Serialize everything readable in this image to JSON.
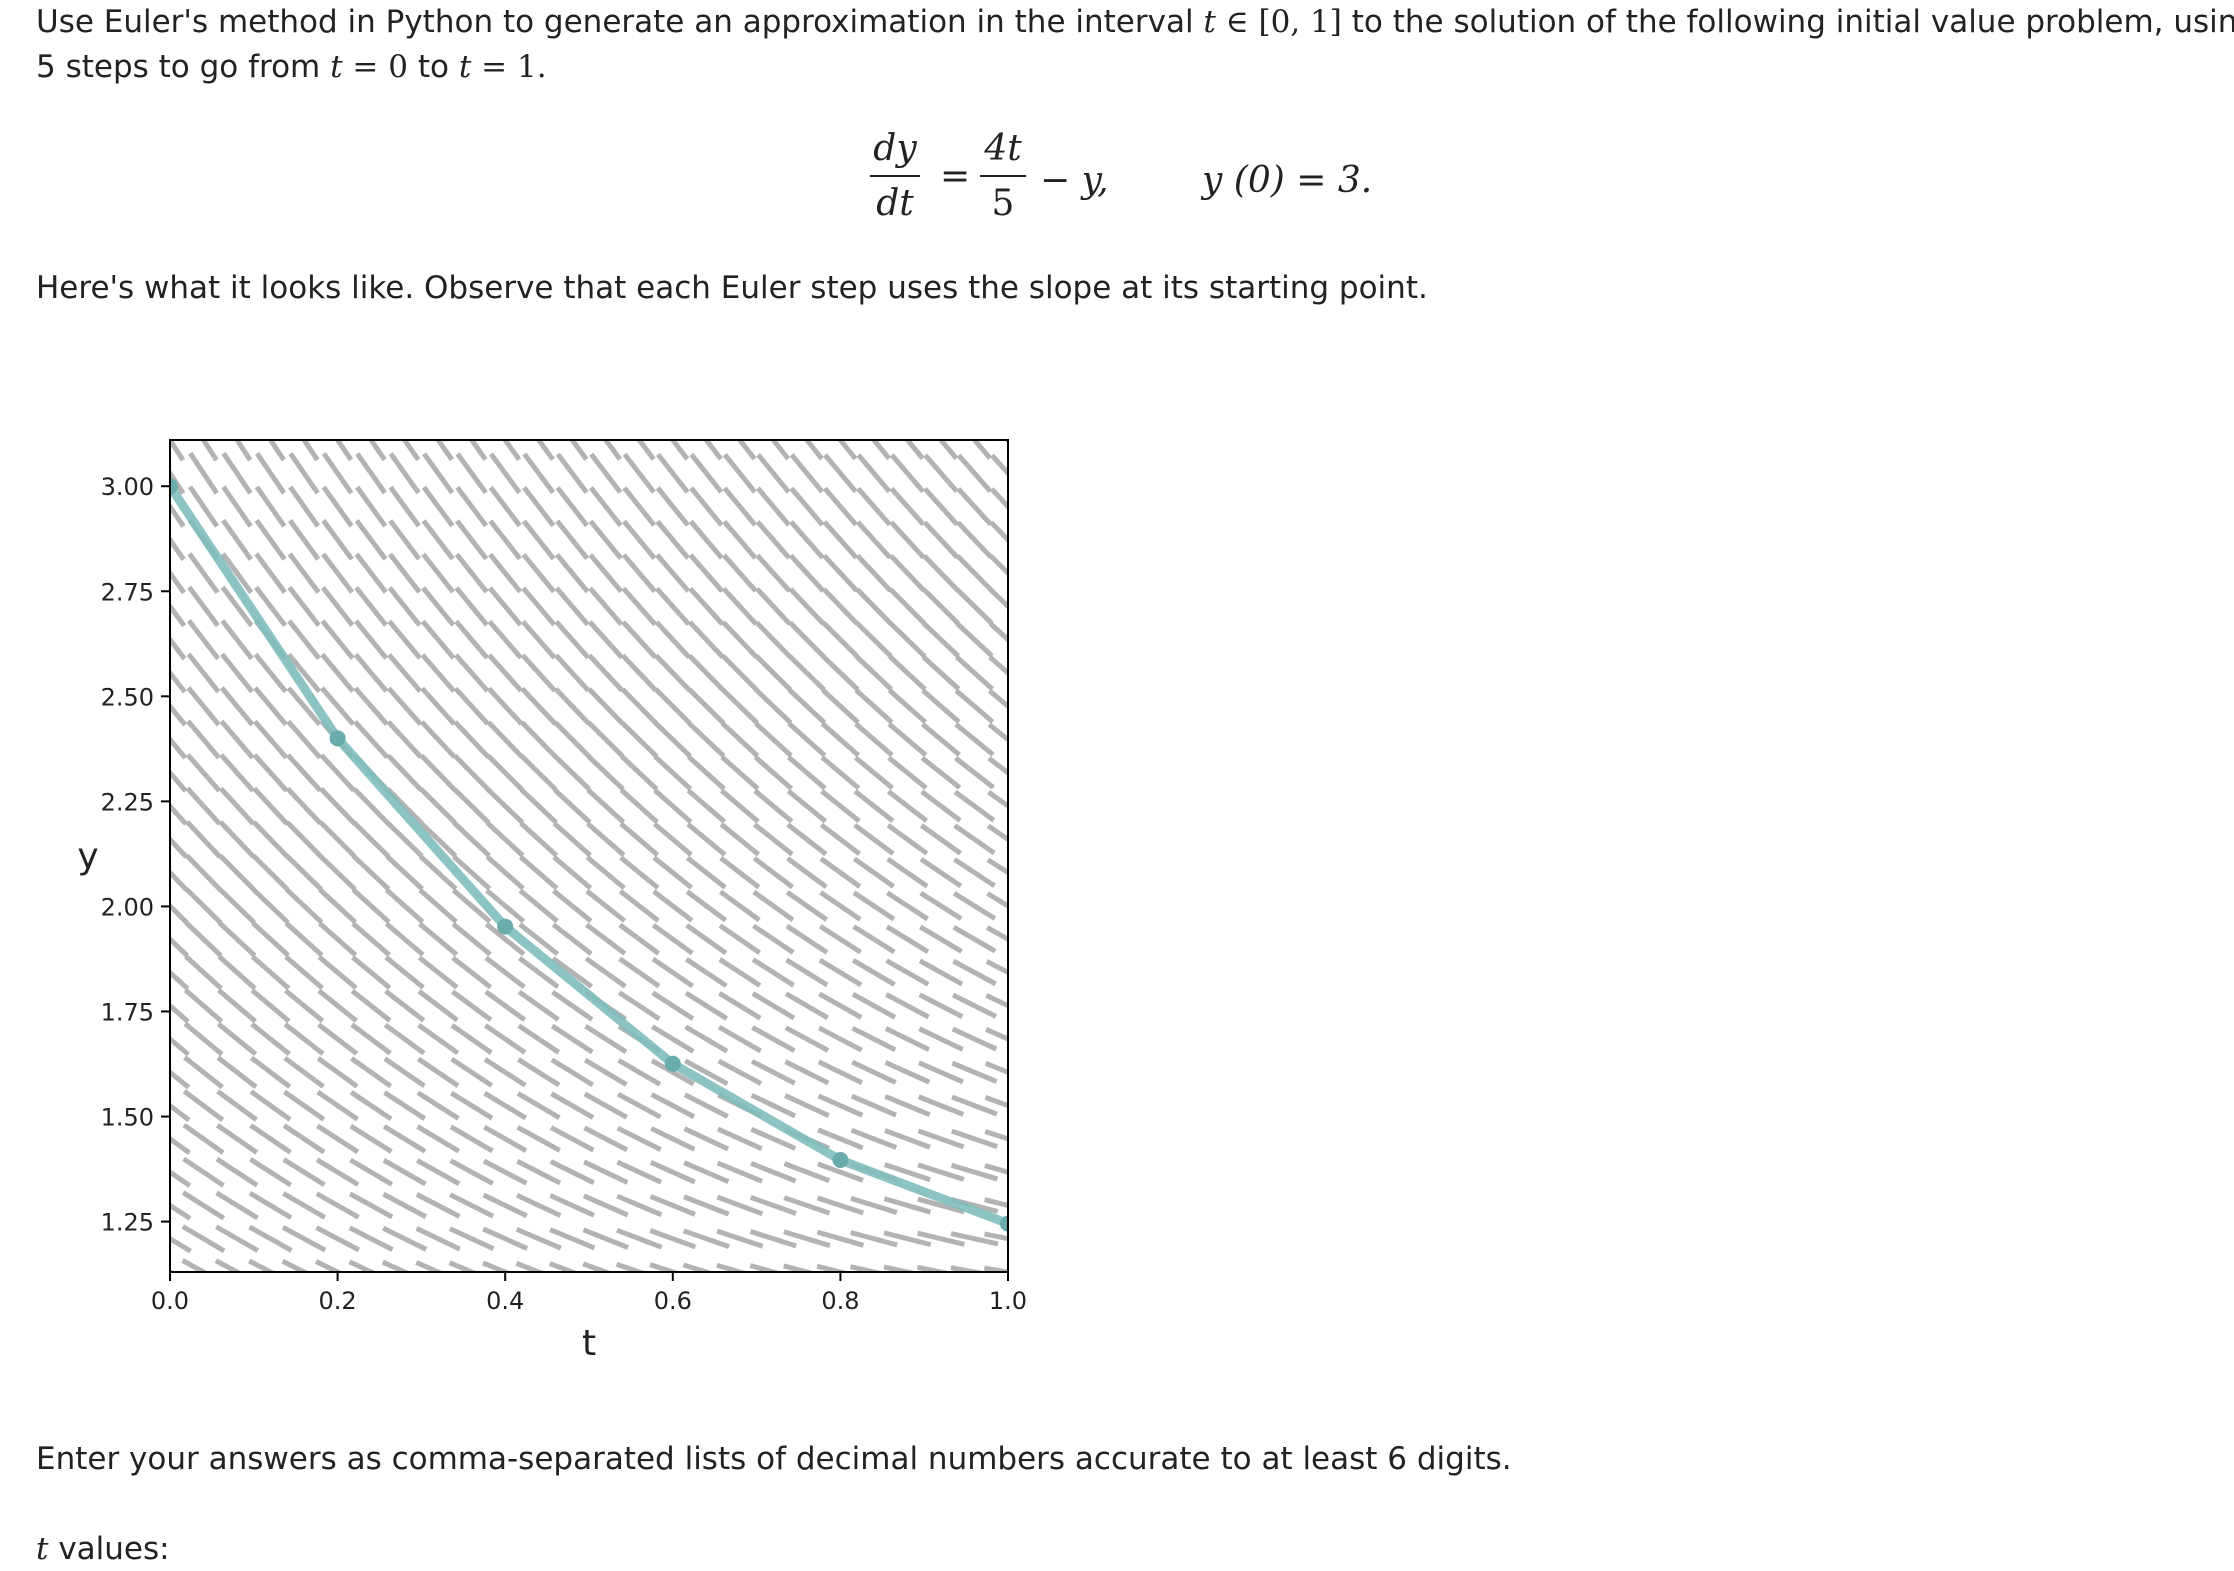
{
  "question": {
    "line1_a": "Use Euler's method in Python to generate an approximation in the interval ",
    "line1_b": " to the solution of the following initial value problem, using",
    "interval_var": "t",
    "interval_sym": " ∈ [0, 1]",
    "line2_a": "5 steps to go from ",
    "line2_t1": "t",
    "line2_eq1": " = 0",
    "line2_to": " to ",
    "line2_t2": "t",
    "line2_eq2": " = 1."
  },
  "equation": {
    "lhs_num": "dy",
    "lhs_den": "dt",
    "equals": "=",
    "rhs_num": "4t",
    "rhs_den": "5",
    "rhs_rest": "− y,",
    "initial": "y (0) = 3."
  },
  "intro_text": "Here's what it looks like. Observe that each Euler step uses the slope at its starting point.",
  "answers_note": "Enter your answers as comma-separated lists of decimal numbers accurate to at least 6 digits.",
  "tvalues": {
    "var": "t",
    "label": " values:"
  },
  "chart_data": {
    "type": "line",
    "xlabel": "t",
    "ylabel": "y",
    "xlim": [
      0.0,
      1.0
    ],
    "ylim": [
      1.13,
      3.11
    ],
    "xticks": [
      "0.0",
      "0.2",
      "0.4",
      "0.6",
      "0.8",
      "1.0"
    ],
    "yticks": [
      "1.25",
      "1.50",
      "1.75",
      "2.00",
      "2.25",
      "2.50",
      "2.75",
      "3.00"
    ],
    "series": [
      {
        "x": [
          0.0,
          0.2,
          0.4,
          0.6,
          0.8,
          1.0
        ],
        "y": [
          3.0,
          2.4,
          1.952,
          1.6256,
          1.39648,
          1.245184
        ]
      }
    ],
    "slope_field": "dy/dt = 4t/5 - y",
    "colors": {
      "line": "#7fbcbc",
      "marker": "#6aacac",
      "field": "#b3b3b3",
      "axes": "#000000"
    }
  }
}
